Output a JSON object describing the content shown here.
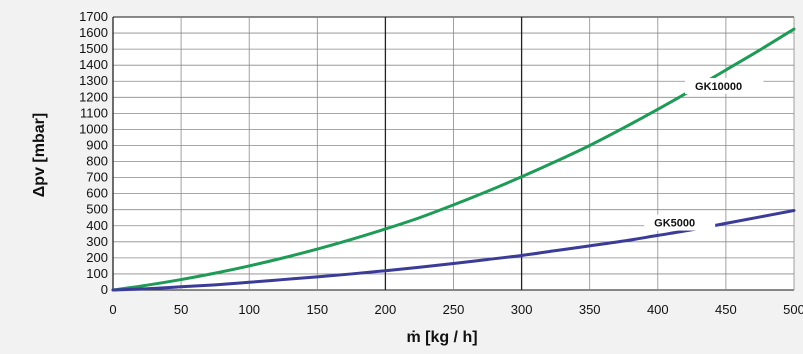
{
  "chart_data": {
    "type": "line",
    "title": "",
    "xlabel": "ṁ [kg / h]",
    "ylabel": "Δpv [mbar]",
    "xlim": [
      0,
      500
    ],
    "ylim": [
      0,
      1700
    ],
    "xticks": [
      0,
      50,
      100,
      150,
      200,
      250,
      300,
      350,
      400,
      450,
      500
    ],
    "yticks": [
      0,
      100,
      200,
      300,
      400,
      500,
      600,
      700,
      800,
      900,
      1000,
      1100,
      1200,
      1300,
      1400,
      1500,
      1600,
      1700
    ],
    "grid": true,
    "series": [
      {
        "name": "GK10000",
        "color": "#1f9a57",
        "x": [
          0,
          25,
          50,
          75,
          100,
          125,
          150,
          175,
          200,
          225,
          250,
          275,
          300,
          325,
          350,
          375,
          400,
          425,
          450,
          475,
          500
        ],
        "values": [
          0,
          30,
          65,
          105,
          150,
          200,
          255,
          315,
          380,
          450,
          530,
          615,
          705,
          800,
          900,
          1010,
          1125,
          1245,
          1370,
          1495,
          1625
        ]
      },
      {
        "name": "GK5000",
        "color": "#3b3b98",
        "x": [
          0,
          25,
          50,
          75,
          100,
          125,
          150,
          175,
          200,
          225,
          250,
          275,
          300,
          325,
          350,
          375,
          400,
          425,
          450,
          475,
          500
        ],
        "values": [
          0,
          8,
          20,
          32,
          48,
          65,
          82,
          100,
          120,
          142,
          165,
          190,
          215,
          245,
          275,
          305,
          340,
          375,
          415,
          455,
          495
        ]
      }
    ]
  }
}
